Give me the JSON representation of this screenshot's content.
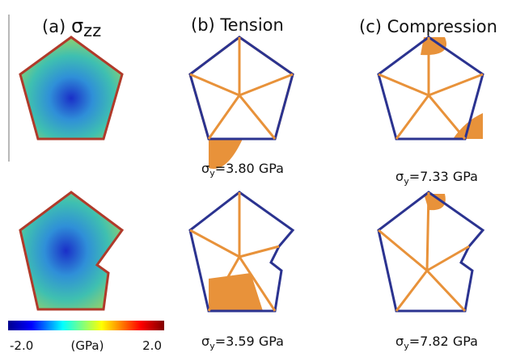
{
  "panels": [
    {
      "label": "(a)",
      "symbol": "σ",
      "subscript": "zz"
    },
    {
      "label": "(b)",
      "title": "Tension"
    },
    {
      "label": "(c)",
      "title": "Compression"
    }
  ],
  "yield_stress": {
    "tension": [
      {
        "symbol": "σ",
        "subscript": "y",
        "text": "=3.80 GPa"
      },
      {
        "symbol": "σ",
        "subscript": "y",
        "text": "=3.59 GPa"
      }
    ],
    "compression": [
      {
        "symbol": "σ",
        "subscript": "y",
        "text": "=7.33 GPa"
      },
      {
        "symbol": "σ",
        "subscript": "y",
        "text": "=7.82 GPa"
      }
    ]
  },
  "colorbar": {
    "min": "-2.0",
    "unit": "(GPa)",
    "max": "2.0"
  }
}
